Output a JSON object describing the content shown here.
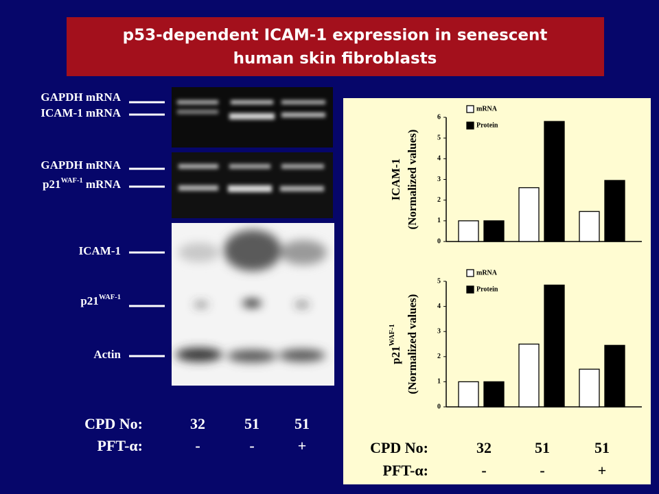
{
  "title": [
    "p53-dependent ICAM-1 expression in senescent",
    "human skin fibroblasts"
  ],
  "blot_labels": [
    {
      "text": "GAPDH mRNA"
    },
    {
      "text": "ICAM-1 mRNA"
    },
    {
      "text": "GAPDH mRNA"
    },
    {
      "text": "p21",
      "sup": "WAF-1",
      "after": " mRNA"
    },
    {
      "text": "ICAM-1"
    },
    {
      "text": "p21",
      "sup": "WAF-1"
    },
    {
      "text": "Actin"
    }
  ],
  "left_footer": [
    {
      "label": "CPD No:",
      "values": [
        "32",
        "51",
        "51"
      ]
    },
    {
      "label": "PFT-α:",
      "values": [
        "-",
        "-",
        "+"
      ]
    }
  ],
  "right_footer": [
    {
      "label": "CPD No:",
      "values": [
        "32",
        "51",
        "51"
      ]
    },
    {
      "label": "PFT-α:",
      "values": [
        "-",
        "-",
        "+"
      ]
    }
  ],
  "chart_data": [
    {
      "type": "bar",
      "ylabel": [
        {
          "text": "ICAM-1"
        },
        {
          "text": "(Normalized values)"
        }
      ],
      "series": [
        {
          "name": "mRNA",
          "color": "#ffffff",
          "values": [
            1,
            2.6,
            1.45
          ]
        },
        {
          "name": "Protein",
          "color": "#000000",
          "values": [
            1,
            5.8,
            2.95
          ]
        }
      ],
      "ylim": [
        0,
        6
      ],
      "yticks": [
        0,
        1,
        2,
        3,
        4,
        5,
        6
      ],
      "legend": "upper left"
    },
    {
      "type": "bar",
      "ylabel": [
        {
          "text": "p21",
          "sup": "WAF-1"
        },
        {
          "text": "(Normalized values)"
        }
      ],
      "series": [
        {
          "name": "mRNA",
          "color": "#ffffff",
          "values": [
            1,
            2.5,
            1.5
          ]
        },
        {
          "name": "Protein",
          "color": "#000000",
          "values": [
            1,
            4.85,
            2.45
          ]
        }
      ],
      "ylim": [
        0,
        5
      ],
      "yticks": [
        0,
        1,
        2,
        3,
        4,
        5
      ],
      "legend": "upper left"
    }
  ]
}
